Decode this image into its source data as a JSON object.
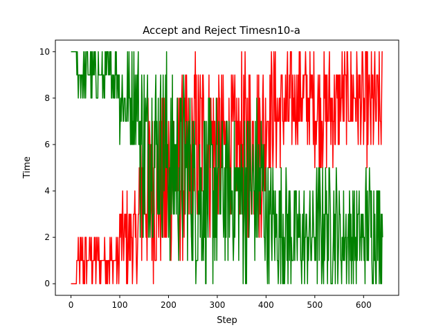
{
  "chart_data": {
    "type": "line",
    "title": "Accept and Reject Timesn10-a",
    "xlabel": "Step",
    "ylabel": "Time",
    "xlim": [
      -32,
      672
    ],
    "ylim": [
      -0.5,
      10.5
    ],
    "xticks": [
      0,
      100,
      200,
      300,
      400,
      500,
      600
    ],
    "yticks": [
      0,
      2,
      4,
      6,
      8,
      10
    ],
    "grid": false,
    "legend": "none",
    "num_steps": 640,
    "series": [
      {
        "color": "#ff0000",
        "segments": [
          {
            "x0": 0,
            "x1": 12,
            "lo": 0,
            "hi": 0
          },
          {
            "x0": 12,
            "x1": 50,
            "lo": 0,
            "hi": 2
          },
          {
            "x0": 50,
            "x1": 100,
            "lo": 0,
            "hi": 2
          },
          {
            "x0": 100,
            "x1": 140,
            "lo": 0,
            "hi": 4
          },
          {
            "x0": 140,
            "x1": 200,
            "lo": 0,
            "hi": 8
          },
          {
            "x0": 200,
            "x1": 250,
            "lo": 1,
            "hi": 9
          },
          {
            "x0": 250,
            "x1": 300,
            "lo": 2,
            "hi": 10
          },
          {
            "x0": 300,
            "x1": 350,
            "lo": 3,
            "hi": 9
          },
          {
            "x0": 350,
            "x1": 400,
            "lo": 2,
            "hi": 10
          },
          {
            "x0": 400,
            "x1": 450,
            "lo": 5,
            "hi": 10
          },
          {
            "x0": 450,
            "x1": 500,
            "lo": 6,
            "hi": 10
          },
          {
            "x0": 500,
            "x1": 550,
            "lo": 5,
            "hi": 10
          },
          {
            "x0": 550,
            "x1": 600,
            "lo": 6,
            "hi": 10
          },
          {
            "x0": 600,
            "x1": 640,
            "lo": 5,
            "hi": 10
          }
        ]
      },
      {
        "color": "#008000",
        "segments": [
          {
            "x0": 0,
            "x1": 12,
            "lo": 10,
            "hi": 10
          },
          {
            "x0": 12,
            "x1": 50,
            "lo": 8,
            "hi": 10
          },
          {
            "x0": 50,
            "x1": 100,
            "lo": 8,
            "hi": 10
          },
          {
            "x0": 100,
            "x1": 140,
            "lo": 6,
            "hi": 10
          },
          {
            "x0": 140,
            "x1": 200,
            "lo": 2,
            "hi": 10
          },
          {
            "x0": 200,
            "x1": 250,
            "lo": 1,
            "hi": 9
          },
          {
            "x0": 250,
            "x1": 300,
            "lo": 0,
            "hi": 8
          },
          {
            "x0": 300,
            "x1": 350,
            "lo": 1,
            "hi": 7
          },
          {
            "x0": 350,
            "x1": 400,
            "lo": 0,
            "hi": 8
          },
          {
            "x0": 400,
            "x1": 450,
            "lo": 0,
            "hi": 5
          },
          {
            "x0": 450,
            "x1": 500,
            "lo": 0,
            "hi": 4
          },
          {
            "x0": 500,
            "x1": 550,
            "lo": 0,
            "hi": 5
          },
          {
            "x0": 550,
            "x1": 600,
            "lo": 0,
            "hi": 4
          },
          {
            "x0": 600,
            "x1": 640,
            "lo": 0,
            "hi": 5
          }
        ]
      }
    ]
  }
}
